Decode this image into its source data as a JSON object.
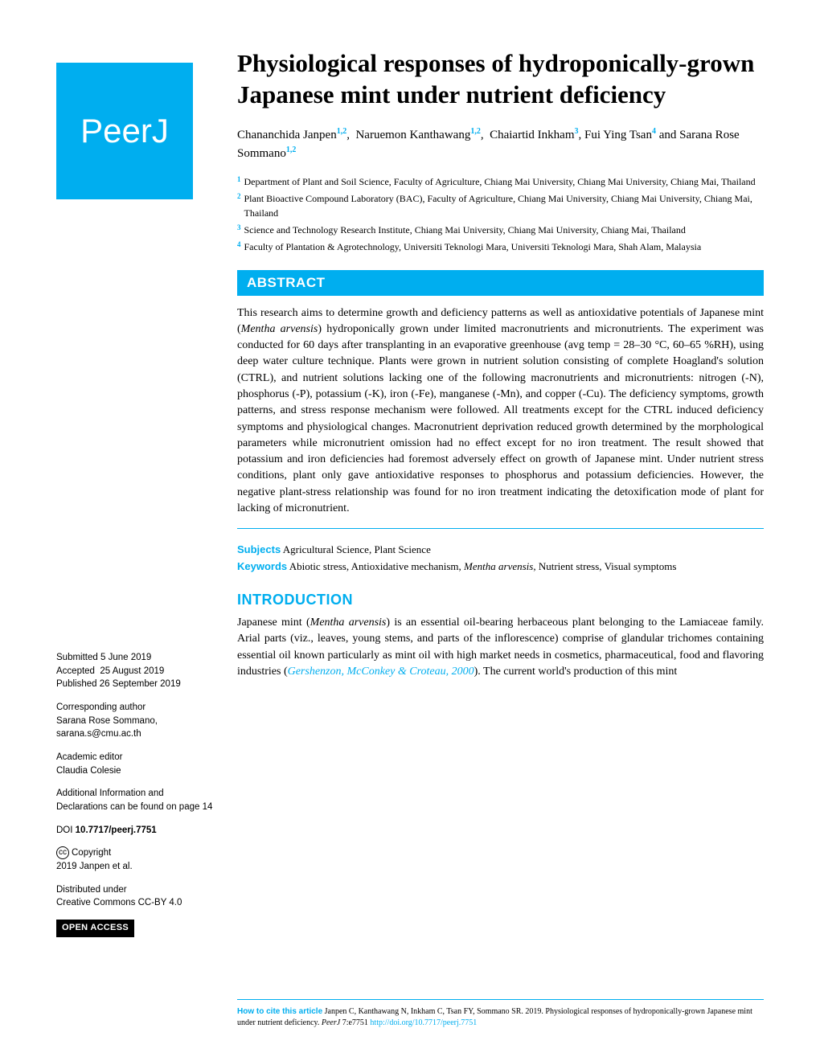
{
  "logo": "PeerJ",
  "title": "Physiological responses of hydroponically-grown Japanese mint under nutrient deficiency",
  "authors": [
    {
      "name": "Chananchida Janpen",
      "sup": "1,2"
    },
    {
      "name": "Naruemon Kanthawang",
      "sup": "1,2"
    },
    {
      "name": "Chaiartid Inkham",
      "sup": "3"
    },
    {
      "name": "Fui Ying Tsan",
      "sup": "4"
    },
    {
      "name": "Sarana Rose Sommano",
      "sup": "1,2"
    }
  ],
  "affiliations": [
    {
      "num": "1",
      "text": "Department of Plant and Soil Science, Faculty of Agriculture, Chiang Mai University, Chiang Mai University, Chiang Mai, Thailand"
    },
    {
      "num": "2",
      "text": "Plant Bioactive Compound Laboratory (BAC), Faculty of Agriculture, Chiang Mai University, Chiang Mai University, Chiang Mai, Thailand"
    },
    {
      "num": "3",
      "text": "Science and Technology Research Institute, Chiang Mai University, Chiang Mai University, Chiang Mai, Thailand"
    },
    {
      "num": "4",
      "text": "Faculty of Plantation & Agrotechnology, Universiti Teknologi Mara, Universiti Teknologi Mara, Shah Alam, Malaysia"
    }
  ],
  "abstract": {
    "header": "ABSTRACT",
    "body_pre": "This research aims to determine growth and deficiency patterns as well as antioxidative potentials of Japanese mint (",
    "body_italic": "Mentha arvensis",
    "body_post": ") hydroponically grown under limited macronutrients and micronutrients. The experiment was conducted for 60 days after transplanting in an evaporative greenhouse (avg temp = 28–30 °C, 60–65 %RH), using deep water culture technique. Plants were grown in nutrient solution consisting of complete Hoagland's solution (CTRL), and nutrient solutions lacking one of the following macronutrients and micronutrients: nitrogen (-N), phosphorus (-P), potassium (-K), iron (-Fe), manganese (-Mn), and copper (-Cu). The deficiency symptoms, growth patterns, and stress response mechanism were followed. All treatments except for the CTRL induced deficiency symptoms and physiological changes. Macronutrient deprivation reduced growth determined by the morphological parameters while micronutrient omission had no effect except for no iron treatment. The result showed that potassium and iron deficiencies had foremost adversely effect on growth of Japanese mint. Under nutrient stress conditions, plant only gave antioxidative responses to phosphorus and potassium deficiencies. However, the negative plant-stress relationship was found for no iron treatment indicating the detoxification mode of plant for lacking of micronutrient."
  },
  "subjects": {
    "label": "Subjects",
    "text": "Agricultural Science, Plant Science"
  },
  "keywords": {
    "label": "Keywords",
    "pre": "Abiotic stress, Antioxidative mechanism, ",
    "italic": "Mentha arvensis",
    "post": ", Nutrient stress, Visual symptoms"
  },
  "introduction": {
    "header": "INTRODUCTION",
    "pre": "Japanese mint (",
    "italic": "Mentha arvensis",
    "mid": ") is an essential oil-bearing herbaceous plant belonging to the Lamiaceae family. Arial parts (viz., leaves, young stems, and parts of the inflorescence) comprise of glandular trichomes containing essential oil known particularly as mint oil with high market needs in cosmetics, pharmaceutical, food and flavoring industries (",
    "ref": "Gershenzon, McConkey & Croteau, 2000",
    "post": "). The current world's production of this mint"
  },
  "sidebar": {
    "submitted_label": "Submitted",
    "submitted": "5 June 2019",
    "accepted_label": "Accepted",
    "accepted": "25 August 2019",
    "published_label": "Published",
    "published": "26 September 2019",
    "corresponding_label": "Corresponding author",
    "corresponding_name": "Sarana Rose Sommano,",
    "corresponding_email": "sarana.s@cmu.ac.th",
    "editor_label": "Academic editor",
    "editor_name": "Claudia Colesie",
    "additional": "Additional Information and Declarations can be found on page 14",
    "doi_label": "DOI",
    "doi": "10.7717/peerj.7751",
    "copyright_label": "Copyright",
    "copyright_text": "2019 Janpen et al.",
    "distributed_label": "Distributed under",
    "distributed_text": "Creative Commons CC-BY 4.0",
    "open_access": "OPEN ACCESS"
  },
  "footer": {
    "label": "How to cite this article",
    "text_pre": "Janpen C, Kanthawang N, Inkham C, Tsan FY, Sommano SR. 2019. Physiological responses of hydroponically-grown Japanese mint under nutrient deficiency. ",
    "journal": "PeerJ",
    "text_mid": " 7:e7751 ",
    "link": "http://doi.org/10.7717/peerj.7751"
  },
  "colors": {
    "brand": "#00aeef",
    "text": "#000000",
    "bg": "#ffffff"
  }
}
